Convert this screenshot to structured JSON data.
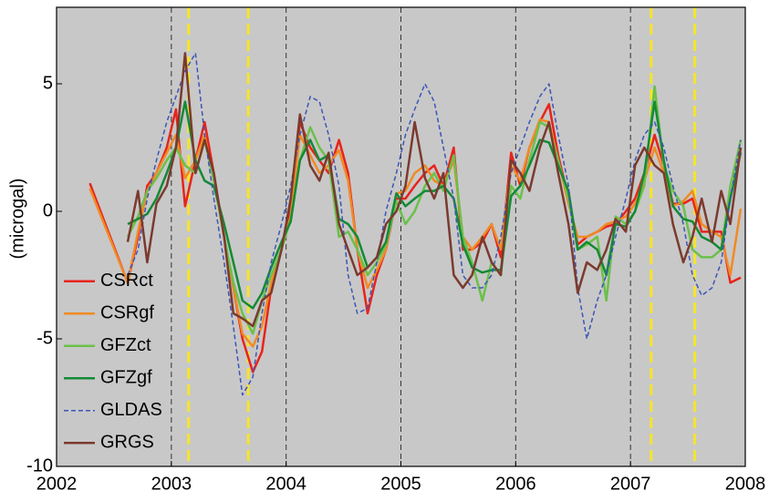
{
  "chart_data": {
    "type": "line",
    "ylabel": "(microgal)",
    "x": [
      2002.29,
      2002.62,
      2002.71,
      2002.79,
      2002.87,
      2002.96,
      2003.04,
      2003.12,
      2003.21,
      2003.29,
      2003.37,
      2003.46,
      2003.54,
      2003.62,
      2003.71,
      2003.79,
      2003.87,
      2003.96,
      2004.04,
      2004.12,
      2004.21,
      2004.29,
      2004.37,
      2004.46,
      2004.54,
      2004.62,
      2004.71,
      2004.79,
      2004.87,
      2004.96,
      2005.04,
      2005.12,
      2005.21,
      2005.29,
      2005.37,
      2005.46,
      2005.54,
      2005.62,
      2005.71,
      2005.79,
      2005.87,
      2005.96,
      2006.04,
      2006.12,
      2006.21,
      2006.29,
      2006.37,
      2006.46,
      2006.54,
      2006.62,
      2006.71,
      2006.79,
      2006.87,
      2006.96,
      2007.04,
      2007.12,
      2007.21,
      2007.29,
      2007.37,
      2007.46,
      2007.54,
      2007.62,
      2007.71,
      2007.79,
      2007.87,
      2007.96
    ],
    "series": [
      {
        "name": "CSRct",
        "color": "#e8231b",
        "values": [
          1.1,
          -2.8,
          -1,
          1,
          1.5,
          2.5,
          4,
          0.2,
          2,
          3.5,
          1.5,
          -1,
          -3,
          -5,
          -6.3,
          -5.5,
          -3,
          -1.5,
          0,
          3.5,
          2.5,
          2,
          1.5,
          2.8,
          1.5,
          -1.5,
          -4,
          -2.5,
          -1.5,
          0.5,
          0.5,
          1,
          1.5,
          1.8,
          1,
          2.5,
          -1.5,
          -1.5,
          -1.2,
          -0.5,
          -1.8,
          2.3,
          1,
          2.5,
          3.5,
          4.2,
          2.2,
          0.5,
          -1.3,
          -1,
          -0.8,
          -0.6,
          -0.5,
          0,
          0.5,
          1.5,
          3,
          1.8,
          0.3,
          0.3,
          0.5,
          -0.8,
          -0.8,
          -0.8,
          -2.8,
          -2.6
        ]
      },
      {
        "name": "CSRgf",
        "color": "#f08a24",
        "values": [
          0.9,
          -2.8,
          -0.8,
          0.8,
          1.5,
          2.3,
          3,
          1.3,
          2,
          3,
          1.2,
          -1,
          -3,
          -4.8,
          -5.3,
          -4.5,
          -2.8,
          -1.5,
          -0.2,
          3,
          2.2,
          1.5,
          1.8,
          2.4,
          1.2,
          -1.5,
          -3,
          -2.3,
          -1.5,
          0.7,
          0.8,
          1.5,
          1.8,
          1.2,
          1,
          2,
          -1,
          -1.5,
          -1,
          -0.5,
          -1.5,
          1.8,
          1.2,
          2.5,
          3.6,
          3.5,
          2,
          0.3,
          -1,
          -1,
          -0.8,
          -0.5,
          -0.4,
          -0.2,
          0.3,
          1.2,
          2.5,
          1.5,
          0.2,
          0.4,
          0.8,
          -0.5,
          -0.8,
          -1,
          -2.5,
          0.1
        ]
      },
      {
        "name": "GFZct",
        "color": "#6cc04a",
        "values": [
          null,
          -1,
          -0.2,
          0.8,
          1.3,
          2,
          2.5,
          1.8,
          1.5,
          2.8,
          1.2,
          -1,
          -2.8,
          -4,
          -4.8,
          -3.5,
          -2.5,
          -1.5,
          -0.3,
          2,
          3.3,
          2.5,
          2,
          -1,
          -0.8,
          -1.5,
          -2.5,
          -2,
          -1.3,
          0.4,
          -0.5,
          0,
          1,
          1.5,
          0.8,
          2.2,
          -1,
          -2,
          -3.5,
          -2,
          -2.5,
          1,
          0.5,
          2,
          3.5,
          3.3,
          2,
          0.5,
          -1.5,
          -1.3,
          -1,
          -3.5,
          -0.2,
          -0.5,
          0,
          1,
          4.9,
          1.8,
          0.8,
          0.2,
          -1.5,
          -1.8,
          -1.8,
          -1.5,
          1,
          2.8
        ]
      },
      {
        "name": "GFZgf",
        "color": "#138a36",
        "values": [
          null,
          -0.5,
          -0.3,
          -0.1,
          0.5,
          1.5,
          2.5,
          4.3,
          2,
          1.2,
          1,
          -0.5,
          -2,
          -3.5,
          -3.8,
          -3.2,
          -2.2,
          -1.2,
          -0.4,
          2,
          2.8,
          2,
          2.2,
          -0.3,
          -0.5,
          -1,
          -2.2,
          -1.8,
          -1.2,
          0.7,
          0.2,
          0.5,
          0.8,
          0.8,
          1,
          0.5,
          -1.3,
          -2.2,
          -2.4,
          -2.3,
          -2.3,
          0.6,
          1,
          1.8,
          2.8,
          2.7,
          1.8,
          0.8,
          -1.5,
          -1.2,
          -1.5,
          -2.5,
          -0.5,
          -0.6,
          0,
          1.5,
          4.3,
          2,
          0.2,
          -0.3,
          -0.4,
          -1,
          -1.2,
          -1.5,
          0.5,
          2.3
        ]
      },
      {
        "name": "GLDAS",
        "color": "#3b55b8",
        "dashed": true,
        "values": [
          null,
          -2.5,
          -1.5,
          0.5,
          2,
          3.5,
          4.5,
          5.5,
          6.2,
          3,
          0.5,
          -2,
          -4.5,
          -7.2,
          -6.5,
          -4,
          -2,
          -0.5,
          1,
          3,
          4.5,
          4.3,
          3,
          1,
          -2.5,
          -4,
          -3.8,
          -2,
          0,
          1.5,
          3,
          4,
          5,
          4.3,
          2.5,
          0.5,
          -2.5,
          -3,
          -3,
          -2.5,
          -1,
          1.5,
          2.5,
          3.5,
          4.5,
          5,
          3,
          1,
          -3,
          -5,
          -3.5,
          -2.5,
          -1,
          0.5,
          2,
          3,
          3.5,
          2.5,
          1,
          -0.5,
          -2.5,
          -3.3,
          -3,
          -2,
          0.5,
          2.8
        ]
      },
      {
        "name": "GRGS",
        "color": "#7b3a2e",
        "values": [
          null,
          -1.2,
          0.8,
          -2,
          0.3,
          1,
          2.5,
          6.2,
          1.5,
          2.8,
          1.5,
          -1,
          -4,
          -4.2,
          -4.5,
          -3.5,
          -3.2,
          -1.5,
          0.5,
          3.8,
          1.8,
          1.2,
          2.3,
          -0.5,
          -1.5,
          -2.5,
          -2.2,
          -1.8,
          -0.5,
          0,
          1,
          3.5,
          1.3,
          0.5,
          1.5,
          -2.5,
          -3,
          -2.5,
          -1,
          -2,
          -2.5,
          2,
          1.5,
          0.8,
          2.5,
          3.5,
          1.5,
          -0.5,
          -3.2,
          -2,
          -2.3,
          -1.5,
          -0.3,
          -0.8,
          1.8,
          2.5,
          1.8,
          1.5,
          -0.5,
          -2,
          -1,
          0.5,
          -1.2,
          0.8,
          -0.5,
          2.5
        ]
      }
    ],
    "xlim": [
      2002,
      2008
    ],
    "xticks": [
      2002,
      2003,
      2004,
      2005,
      2006,
      2007,
      2008
    ],
    "ylim": [
      -10,
      8
    ],
    "yticks": [
      -10,
      -5,
      0,
      5
    ],
    "x_grid": true,
    "grid_color": "#333333",
    "vlines": [
      {
        "x": 2003.15,
        "color": "#f5e52a"
      },
      {
        "x": 2003.67,
        "color": "#f5e52a"
      },
      {
        "x": 2007.18,
        "color": "#f5e52a"
      },
      {
        "x": 2007.56,
        "color": "#f5e52a"
      }
    ],
    "background": "#c8c8c8",
    "legend": "lower left"
  }
}
